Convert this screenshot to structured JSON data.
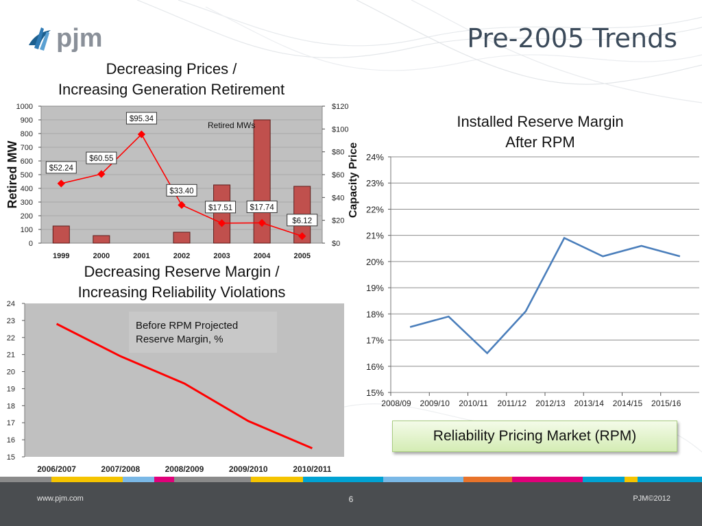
{
  "brand": {
    "logo_text": "pjm"
  },
  "slide": {
    "title": "Pre-2005 Trends"
  },
  "footer": {
    "url": "www.pjm.com",
    "page": "6",
    "copyright": "PJM©2012"
  },
  "rpm_box": {
    "label": "Reliability Pricing Market (RPM)"
  },
  "colors": {
    "bar": "#c0504d",
    "price_line": "#ff0000",
    "reserve_line": "#ff0000",
    "rpm_line": "#4a7ebb",
    "plot_bg": "#c0c0c0",
    "footer_bg": "#4a4d50",
    "stripe": [
      "#8a8a8a",
      "#f5c400",
      "#7ab8e6",
      "#e0007a",
      "#8a8a8a",
      "#f5c400",
      "#00a2d3",
      "#7ab8e6",
      "#7ab8e6",
      "#e8732a",
      "#e0007a",
      "#00a2d3",
      "#f5c400",
      "#00a2d3"
    ]
  },
  "chart_data": [
    {
      "type": "bar",
      "title_lines": [
        "Decreasing Prices /",
        "Increasing Generation Retirement"
      ],
      "categories": [
        "1999",
        "2000",
        "2001",
        "2002",
        "2003",
        "2004",
        "2005"
      ],
      "ylabel": "Retired MW",
      "y2label": "Capacity Price",
      "ylim": [
        0,
        1000
      ],
      "y2lim": [
        0,
        120
      ],
      "yticks": [
        "0",
        "100",
        "200",
        "300",
        "400",
        "500",
        "600",
        "700",
        "800",
        "900",
        "1000"
      ],
      "y2ticks": [
        "$0",
        "$20",
        "$40",
        "$60",
        "$80",
        "$100",
        "$120"
      ],
      "grid": true,
      "legend": "top",
      "series": [
        {
          "name": "Retired MWs",
          "type": "bar",
          "axis": "left",
          "values": [
            125,
            55,
            0,
            80,
            425,
            900,
            415
          ]
        },
        {
          "name": "",
          "type": "line",
          "axis": "right",
          "values": [
            52.24,
            60.55,
            95.34,
            33.4,
            17.51,
            17.74,
            6.12
          ],
          "labels": [
            "$52.24",
            "$60.55",
            "$95.34",
            "$33.40",
            "$17.51",
            "$17.74",
            "$6.12"
          ]
        }
      ]
    },
    {
      "type": "line",
      "title_lines": [
        "Decreasing Reserve Margin /",
        "Increasing Reliability Violations"
      ],
      "categories": [
        "2006/2007",
        "2007/2008",
        "2008/2009",
        "2009/2010",
        "2010/2011"
      ],
      "ylim": [
        15,
        24
      ],
      "yticks": [
        "15",
        "16",
        "17",
        "18",
        "19",
        "20",
        "21",
        "22",
        "23",
        "24"
      ],
      "grid": false,
      "legend": "inside-top",
      "series": [
        {
          "name": "Before RPM Projected Reserve Margin, %",
          "legend_lines": [
            "Before RPM Projected",
            "Reserve Margin, %"
          ],
          "values": [
            22.8,
            20.9,
            19.3,
            17.1,
            15.5
          ]
        }
      ]
    },
    {
      "type": "line",
      "title_lines": [
        "Installed Reserve Margin",
        "After RPM"
      ],
      "categories": [
        "2008/09",
        "2009/10",
        "2010/11",
        "2011/12",
        "2012/13",
        "2013/14",
        "2014/15",
        "2015/16"
      ],
      "ylim": [
        15,
        24
      ],
      "yticks": [
        "15%",
        "16%",
        "17%",
        "18%",
        "19%",
        "20%",
        "21%",
        "22%",
        "23%",
        "24%"
      ],
      "grid": true,
      "series": [
        {
          "name": "",
          "values": [
            17.5,
            17.9,
            16.5,
            18.1,
            20.9,
            20.2,
            20.6,
            20.2
          ]
        }
      ]
    }
  ]
}
